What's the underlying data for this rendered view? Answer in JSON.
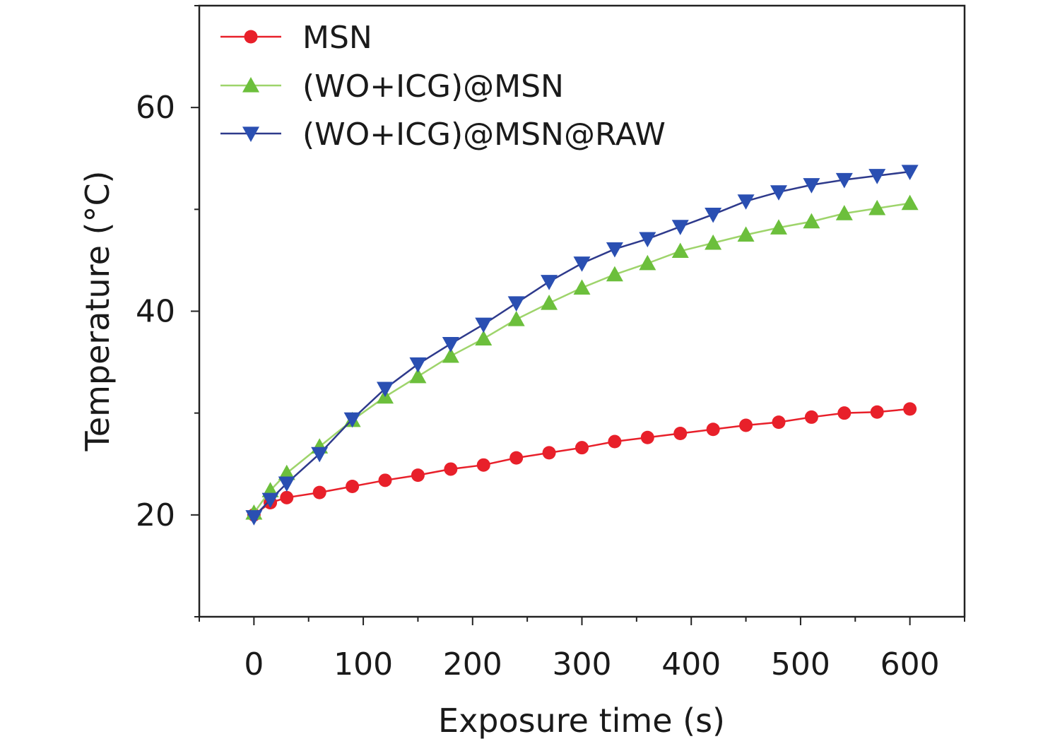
{
  "chart_data": {
    "type": "line",
    "title": "",
    "xlabel": "Exposure time (s)",
    "ylabel": "Temperature (°C)",
    "xlim": [
      -50,
      650
    ],
    "ylim": [
      10,
      70
    ],
    "xticks": [
      0,
      100,
      200,
      300,
      400,
      500,
      600
    ],
    "xtick_labels": [
      "0",
      "100",
      "200",
      "300",
      "400",
      "500",
      "600"
    ],
    "yticks": [
      20,
      40,
      60
    ],
    "ytick_labels": [
      "20",
      "40",
      "60"
    ],
    "grid": false,
    "legend_position": "top-left",
    "x": [
      0,
      15,
      30,
      60,
      90,
      120,
      150,
      180,
      210,
      240,
      270,
      300,
      330,
      360,
      390,
      420,
      450,
      480,
      510,
      540,
      570,
      600
    ],
    "series": [
      {
        "name": "MSN",
        "marker": "circle",
        "line_color": "#e8202a",
        "marker_color": "#e8202a",
        "values": [
          20.0,
          21.2,
          21.7,
          22.2,
          22.8,
          23.4,
          23.9,
          24.5,
          24.9,
          25.6,
          26.1,
          26.6,
          27.2,
          27.6,
          28.0,
          28.4,
          28.8,
          29.1,
          29.6,
          30.0,
          30.1,
          30.4
        ]
      },
      {
        "name": "(WO+ICG)@MSN",
        "marker": "triangle-up",
        "line_color": "#9ed46b",
        "marker_color": "#6cbf3c",
        "values": [
          20.2,
          22.4,
          24.1,
          26.7,
          29.3,
          31.6,
          33.6,
          35.6,
          37.3,
          39.2,
          40.8,
          42.3,
          43.6,
          44.7,
          45.9,
          46.7,
          47.5,
          48.2,
          48.8,
          49.6,
          50.1,
          50.6
        ]
      },
      {
        "name": "(WO+ICG)@MSN@RAW",
        "marker": "triangle-down",
        "line_color": "#2e3a8c",
        "marker_color": "#2a4fb2",
        "values": [
          19.8,
          21.5,
          23.1,
          26.0,
          29.4,
          32.4,
          34.8,
          36.8,
          38.7,
          40.8,
          42.9,
          44.7,
          46.1,
          47.1,
          48.3,
          49.5,
          50.8,
          51.7,
          52.4,
          52.9,
          53.3,
          53.7
        ]
      }
    ]
  }
}
